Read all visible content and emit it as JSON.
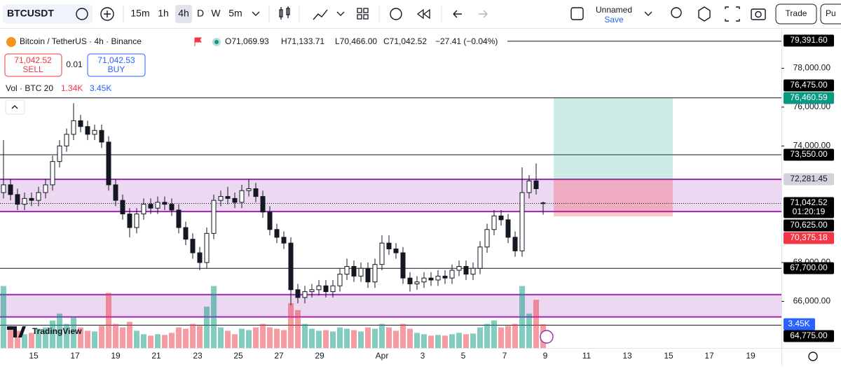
{
  "toolbar": {
    "symbol": "BTCUSDT",
    "intervals": [
      "15m",
      "1h",
      "4h",
      "D",
      "W",
      "5m"
    ],
    "active_interval": 2,
    "layout_name": "Unnamed",
    "save": "Save",
    "trade": "Trade",
    "publish": "Pu"
  },
  "legend": {
    "title": "Bitcoin / TetherUS · 4h · Binance",
    "open": "O71,069.93",
    "high": "H71,133.71",
    "low": "L70,466.00",
    "close": "C71,042.52",
    "change": "−27.41 (−0.04%)"
  },
  "trade_buttons": {
    "sell_price": "71,042.52",
    "sell": "SELL",
    "quantity": "0.01",
    "buy_price": "71,042.53",
    "buy": "BUY"
  },
  "volume_legend": {
    "label": "Vol · BTC 20",
    "value1": "1.34K",
    "value2": "3.45K"
  },
  "watermark": "TradingView",
  "chart": {
    "type": "candlestick",
    "candles": [
      [
        71600,
        74300,
        71300,
        72000
      ],
      [
        72000,
        72300,
        71200,
        71500
      ],
      [
        71500,
        71800,
        70700,
        71000
      ],
      [
        71000,
        71600,
        70700,
        71300
      ],
      [
        71300,
        71600,
        70900,
        71200
      ],
      [
        71200,
        71900,
        70900,
        71600
      ],
      [
        71600,
        72300,
        71300,
        72000
      ],
      [
        72000,
        73500,
        71700,
        73200
      ],
      [
        73200,
        74300,
        72900,
        74000
      ],
      [
        74000,
        74900,
        73700,
        74600
      ],
      [
        74600,
        76200,
        74300,
        75300
      ],
      [
        75300,
        75600,
        74700,
        75000
      ],
      [
        75000,
        75300,
        74300,
        74600
      ],
      [
        74600,
        75100,
        74300,
        74800
      ],
      [
        74800,
        75100,
        73900,
        74200
      ],
      [
        74200,
        74500,
        71700,
        72000
      ],
      [
        72000,
        72300,
        70900,
        71200
      ],
      [
        71200,
        71500,
        70200,
        70500
      ],
      [
        70500,
        70800,
        69300,
        69800
      ],
      [
        69800,
        70800,
        69500,
        70500
      ],
      [
        70500,
        71300,
        70200,
        71000
      ],
      [
        71000,
        71300,
        70500,
        70800
      ],
      [
        70800,
        71400,
        70500,
        71100
      ],
      [
        71100,
        71400,
        70700,
        71000
      ],
      [
        71000,
        71300,
        70400,
        70700
      ],
      [
        70700,
        71000,
        69500,
        69800
      ],
      [
        69800,
        70100,
        68900,
        69200
      ],
      [
        69200,
        69500,
        68200,
        68500
      ],
      [
        68500,
        68800,
        67600,
        68000
      ],
      [
        68000,
        69800,
        67700,
        69500
      ],
      [
        69500,
        71500,
        69200,
        71200
      ],
      [
        71200,
        71700,
        70900,
        71400
      ],
      [
        71400,
        71900,
        71000,
        71300
      ],
      [
        71300,
        71600,
        70800,
        71100
      ],
      [
        71100,
        72000,
        70800,
        71700
      ],
      [
        71700,
        72300,
        71400,
        71800
      ],
      [
        71800,
        72100,
        71100,
        71400
      ],
      [
        71400,
        71700,
        70300,
        70600
      ],
      [
        70600,
        70900,
        69400,
        69700
      ],
      [
        69700,
        70000,
        69000,
        69300
      ],
      [
        69300,
        69600,
        68700,
        69000
      ],
      [
        69000,
        69300,
        65800,
        66600
      ],
      [
        66600,
        66900,
        65900,
        66200
      ],
      [
        66200,
        66800,
        65900,
        66500
      ],
      [
        66500,
        66900,
        66200,
        66600
      ],
      [
        66600,
        67100,
        66300,
        66800
      ],
      [
        66800,
        67100,
        66200,
        66500
      ],
      [
        66500,
        67100,
        66200,
        66800
      ],
      [
        66800,
        67700,
        66500,
        67400
      ],
      [
        67400,
        68200,
        67100,
        67800
      ],
      [
        67800,
        68100,
        67000,
        67300
      ],
      [
        67300,
        68000,
        67000,
        67700
      ],
      [
        67700,
        68000,
        66700,
        67000
      ],
      [
        67000,
        68200,
        66700,
        67900
      ],
      [
        67900,
        69400,
        67600,
        69000
      ],
      [
        69000,
        69400,
        68400,
        68700
      ],
      [
        68700,
        69000,
        68200,
        68500
      ],
      [
        68500,
        68800,
        66900,
        67200
      ],
      [
        67200,
        67500,
        66500,
        66900
      ],
      [
        66900,
        67300,
        66600,
        67000
      ],
      [
        67000,
        67500,
        66700,
        67200
      ],
      [
        67200,
        67500,
        66800,
        67100
      ],
      [
        67100,
        67600,
        66800,
        67300
      ],
      [
        67300,
        67600,
        66900,
        67200
      ],
      [
        67200,
        67900,
        66900,
        67600
      ],
      [
        67600,
        68100,
        67300,
        67800
      ],
      [
        67800,
        68100,
        67100,
        67400
      ],
      [
        67400,
        68000,
        67100,
        67700
      ],
      [
        67700,
        69100,
        67400,
        68800
      ],
      [
        68800,
        70000,
        68500,
        69700
      ],
      [
        69700,
        70700,
        69400,
        70400
      ],
      [
        70400,
        70700,
        69900,
        70200
      ],
      [
        70200,
        70500,
        69000,
        69300
      ],
      [
        69300,
        69600,
        68300,
        68600
      ],
      [
        68600,
        72900,
        68300,
        71600
      ],
      [
        71600,
        72500,
        71300,
        72200
      ],
      [
        72200,
        73100,
        71500,
        71800
      ],
      [
        71069.93,
        71133.71,
        70466,
        71042.52
      ]
    ],
    "volumes": [
      9000,
      3000,
      2500,
      2000,
      2200,
      2800,
      3000,
      4000,
      5000,
      3500,
      4500,
      3000,
      2500,
      2400,
      3200,
      8000,
      3500,
      3000,
      3800,
      2500,
      2000,
      1800,
      2000,
      1900,
      2200,
      3000,
      2800,
      3500,
      3200,
      6000,
      9000,
      3000,
      2500,
      2000,
      2800,
      2600,
      3000,
      3500,
      3000,
      2800,
      2600,
      6500,
      5500,
      3500,
      2800,
      2500,
      2600,
      2400,
      3000,
      2800,
      2600,
      2400,
      3000,
      2800,
      3500,
      3000,
      2500,
      3500,
      2800,
      2200,
      2000,
      1800,
      1900,
      1800,
      2000,
      2200,
      2000,
      2100,
      3000,
      3500,
      4000,
      3000,
      3200,
      3500,
      9000,
      5000,
      7000,
      3450
    ],
    "ylim": [
      63600,
      80000
    ],
    "volume_ylim": [
      0,
      12000
    ],
    "yticks": [
      {
        "value": 78000,
        "label": "78,000.00"
      },
      {
        "value": 76000,
        "label": "76,000.00"
      },
      {
        "value": 74000,
        "label": "74,000.00"
      },
      {
        "value": 68000,
        "label": "68,000.00"
      },
      {
        "value": 66000,
        "label": "66,000.00"
      }
    ],
    "xticks": [
      "15",
      "17",
      "19",
      "21",
      "23",
      "25",
      "27",
      "29",
      "Apr",
      "3",
      "5",
      "7",
      "9",
      "11",
      "13",
      "15",
      "17",
      "19"
    ],
    "levels": [
      79391.6,
      76475,
      73550,
      67700,
      64775
    ],
    "zones": [
      [
        72281.45,
        70625
      ],
      [
        66350,
        65200
      ]
    ],
    "position": {
      "target": 76460.59,
      "entry": 72281.45,
      "stop": 70375.18
    },
    "last_price": 71042.52,
    "price_tags": [
      {
        "value": 79391.6,
        "label": "79,391.60",
        "color": "#000000"
      },
      {
        "value": 76475,
        "label": "76,475.00",
        "color": "#000000"
      },
      {
        "value": 76460.59,
        "label": "76,460.59",
        "color": "#089981"
      },
      {
        "value": 73550,
        "label": "73,550.00",
        "color": "#000000"
      },
      {
        "value": 72281.45,
        "label": "72,281.45",
        "color": "#d1d4dc"
      },
      {
        "value": 71042.52,
        "label": "71,042.52",
        "color": "#000000",
        "countdown": "01:20:19"
      },
      {
        "value": 70625,
        "label": "70,625.00",
        "color": "#000000"
      },
      {
        "value": 70375.18,
        "label": "70,375.18",
        "color": "#f23645"
      },
      {
        "value": 67700,
        "label": "67,700.00",
        "color": "#000000"
      },
      {
        "value": 64775,
        "label": "64,775.00",
        "color": "#000000"
      }
    ]
  }
}
